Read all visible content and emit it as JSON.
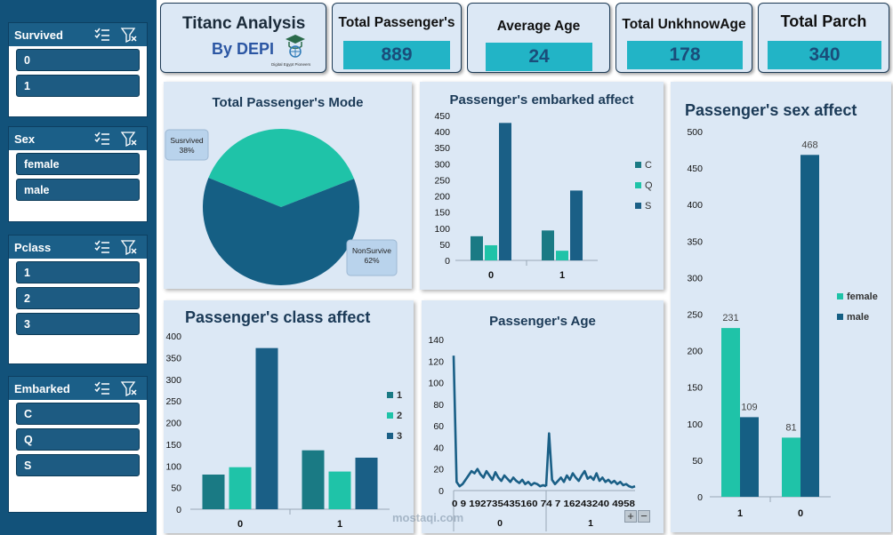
{
  "sidebar": {
    "slicers": [
      {
        "title": "Survived",
        "items": [
          "0",
          "1"
        ]
      },
      {
        "title": "Sex",
        "items": [
          "female",
          "male"
        ]
      },
      {
        "title": "Pclass",
        "items": [
          "1",
          "2",
          "3"
        ]
      },
      {
        "title": "Embarked",
        "items": [
          "C",
          "Q",
          "S"
        ]
      }
    ]
  },
  "header": {
    "title_line1": "Titanc Analysis",
    "title_line2": "By DEPI",
    "logo_caption": "Digital Egypt Pioneers",
    "kpis": [
      {
        "label": "Total Passenger's",
        "value": "889"
      },
      {
        "label": "Average Age",
        "value": "24"
      },
      {
        "label": "Total UnkhnowAge",
        "value": "178"
      },
      {
        "label": "Total Parch",
        "value": "340"
      }
    ]
  },
  "watermark": "mostaqi.com",
  "colors": {
    "sidebar": "#12527a",
    "teal_dark": "#1a7a84",
    "teal_light": "#1fc3a8",
    "navy": "#1a5f86",
    "kpi_fill": "#22b4c6",
    "panel_bg": "#dce8f5"
  },
  "chart_data": [
    {
      "type": "pie",
      "title": "Total Passenger's Mode",
      "slices": [
        {
          "label": "Susrvived",
          "percent": "38%",
          "value": 38,
          "color": "#1fc3a8"
        },
        {
          "label": "NonSurvive",
          "percent": "62%",
          "value": 62,
          "color": "#155f84"
        }
      ]
    },
    {
      "type": "bar",
      "title": "Passenger's embarked affect",
      "categories": [
        "0",
        "1"
      ],
      "series": [
        {
          "name": "C",
          "values": [
            75,
            93
          ],
          "color": "#1a7a84"
        },
        {
          "name": "Q",
          "values": [
            47,
            30
          ],
          "color": "#1fc3a8"
        },
        {
          "name": "S",
          "values": [
            427,
            217
          ],
          "color": "#1a5f86"
        }
      ],
      "yticks": [
        "0",
        "50",
        "100",
        "150",
        "200",
        "250",
        "300",
        "350",
        "400",
        "450"
      ],
      "ylim": [
        0,
        450
      ]
    },
    {
      "type": "bar",
      "title": "Passenger's sex affect",
      "categories": [
        "1",
        "0"
      ],
      "series": [
        {
          "name": "female",
          "values": [
            231,
            81
          ],
          "labels": [
            "231",
            "81"
          ],
          "color": "#1fc3a8"
        },
        {
          "name": "male",
          "values": [
            109,
            468
          ],
          "labels": [
            "109",
            "468"
          ],
          "color": "#155f84"
        }
      ],
      "yticks": [
        "0",
        "50",
        "100",
        "150",
        "200",
        "250",
        "300",
        "350",
        "400",
        "450",
        "500"
      ],
      "ylim": [
        0,
        500
      ]
    },
    {
      "type": "bar",
      "title": "Passenger's class affect",
      "categories": [
        "0",
        "1"
      ],
      "series": [
        {
          "name": "1",
          "values": [
            80,
            136
          ],
          "color": "#1a7a84"
        },
        {
          "name": "2",
          "values": [
            97,
            87
          ],
          "color": "#1fc3a8"
        },
        {
          "name": "3",
          "values": [
            372,
            119
          ],
          "color": "#1a5f86"
        }
      ],
      "yticks": [
        "0",
        "50",
        "100",
        "150",
        "200",
        "250",
        "300",
        "350",
        "400"
      ],
      "ylim": [
        0,
        400
      ]
    },
    {
      "type": "line",
      "title": "Passenger's  Age",
      "yticks": [
        "0",
        "20",
        "40",
        "60",
        "80",
        "100",
        "120",
        "140"
      ],
      "ylim": [
        0,
        140
      ],
      "group_labels": [
        "0",
        "1"
      ],
      "xtick_labels": "0  9  192735435160 74  7  16243240 4958",
      "series": [
        {
          "name": "0",
          "values": [
            125,
            8,
            4,
            6,
            10,
            14,
            18,
            16,
            20,
            15,
            12,
            18,
            14,
            10,
            17,
            12,
            9,
            14,
            11,
            8,
            12,
            9,
            7,
            10,
            6,
            8,
            5,
            7,
            6,
            4,
            5,
            4
          ]
        },
        {
          "name": "1",
          "values": [
            4,
            53,
            10,
            6,
            9,
            12,
            8,
            14,
            10,
            16,
            12,
            9,
            14,
            18,
            11,
            13,
            10,
            16,
            9,
            12,
            8,
            10,
            7,
            9,
            6,
            8,
            5,
            6,
            4,
            3,
            4
          ]
        }
      ]
    }
  ],
  "zoom_buttons": {
    "plus": "+",
    "minus": "−"
  }
}
